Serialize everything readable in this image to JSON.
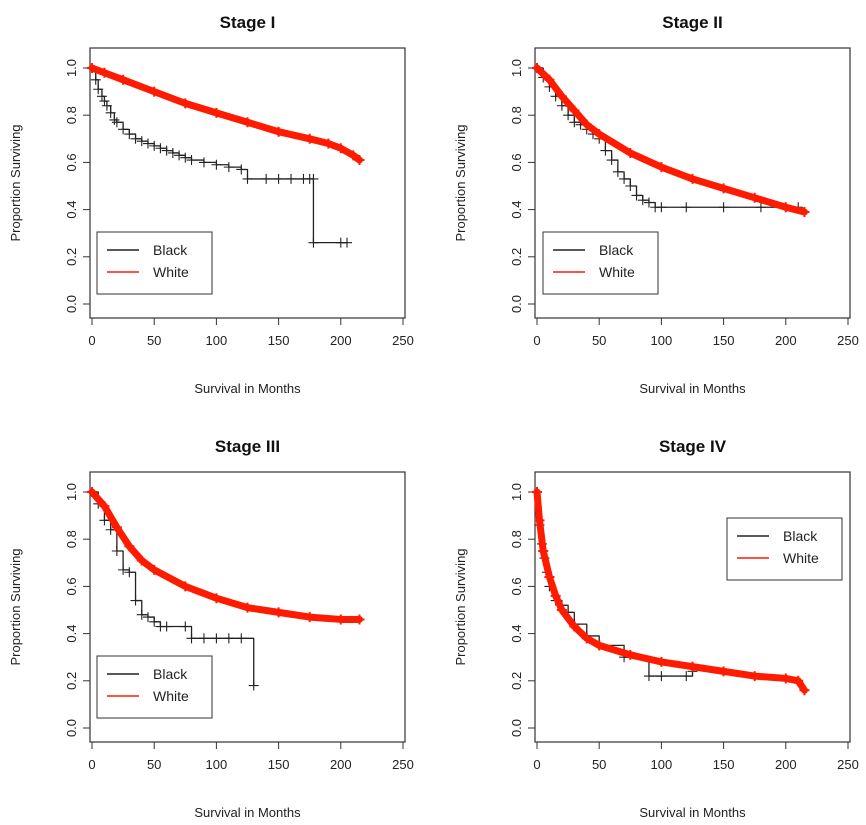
{
  "chart_data": [
    {
      "type": "line",
      "title": "Stage I",
      "xlabel": "Survival in Months",
      "ylabel": "Proportion Surviving",
      "xlim": [
        0,
        250
      ],
      "ylim": [
        0,
        1
      ],
      "xticks": [
        "0",
        "50",
        "100",
        "150",
        "200",
        "250"
      ],
      "yticks": [
        "0.0",
        "0.2",
        "0.4",
        "0.6",
        "0.8",
        "1.0"
      ],
      "legend": "bottom-left",
      "series": [
        {
          "name": "Black",
          "color": "#222222",
          "x": [
            0,
            3,
            5,
            8,
            10,
            12,
            15,
            18,
            20,
            25,
            30,
            35,
            40,
            45,
            50,
            55,
            60,
            65,
            70,
            75,
            80,
            90,
            100,
            110,
            120,
            125,
            140,
            150,
            160,
            170,
            175,
            178,
            178,
            200,
            205
          ],
          "y": [
            1.0,
            0.95,
            0.91,
            0.88,
            0.86,
            0.84,
            0.81,
            0.78,
            0.77,
            0.74,
            0.72,
            0.7,
            0.69,
            0.68,
            0.67,
            0.66,
            0.65,
            0.64,
            0.63,
            0.62,
            0.61,
            0.6,
            0.59,
            0.58,
            0.57,
            0.53,
            0.53,
            0.53,
            0.53,
            0.53,
            0.53,
            0.53,
            0.26,
            0.26,
            0.26
          ]
        },
        {
          "name": "White",
          "color": "#ff1a00",
          "x": [
            0,
            10,
            25,
            50,
            75,
            100,
            125,
            150,
            175,
            190,
            200,
            210,
            215
          ],
          "y": [
            1.0,
            0.98,
            0.95,
            0.9,
            0.85,
            0.81,
            0.77,
            0.73,
            0.7,
            0.68,
            0.66,
            0.63,
            0.61
          ]
        }
      ]
    },
    {
      "type": "line",
      "title": "Stage II",
      "xlabel": "Survival in Months",
      "ylabel": "Proportion Surviving",
      "xlim": [
        0,
        250
      ],
      "ylim": [
        0,
        1
      ],
      "xticks": [
        "0",
        "50",
        "100",
        "150",
        "200",
        "250"
      ],
      "yticks": [
        "0.0",
        "0.2",
        "0.4",
        "0.6",
        "0.8",
        "1.0"
      ],
      "legend": "bottom-left",
      "series": [
        {
          "name": "Black",
          "color": "#222222",
          "x": [
            0,
            5,
            10,
            15,
            20,
            25,
            30,
            35,
            40,
            45,
            50,
            55,
            60,
            65,
            70,
            75,
            80,
            85,
            90,
            95,
            100,
            120,
            150,
            180,
            200,
            210
          ],
          "y": [
            1.0,
            0.96,
            0.92,
            0.88,
            0.84,
            0.8,
            0.77,
            0.76,
            0.74,
            0.72,
            0.7,
            0.65,
            0.61,
            0.56,
            0.53,
            0.5,
            0.46,
            0.44,
            0.43,
            0.41,
            0.41,
            0.41,
            0.41,
            0.41,
            0.41,
            0.41
          ]
        },
        {
          "name": "White",
          "color": "#ff1a00",
          "x": [
            0,
            10,
            20,
            30,
            40,
            50,
            75,
            100,
            125,
            150,
            175,
            200,
            215
          ],
          "y": [
            1.0,
            0.95,
            0.88,
            0.82,
            0.76,
            0.72,
            0.64,
            0.58,
            0.53,
            0.49,
            0.45,
            0.41,
            0.39
          ]
        }
      ]
    },
    {
      "type": "line",
      "title": "Stage III",
      "xlabel": "Survival in Months",
      "ylabel": "Proportion Surviving",
      "xlim": [
        0,
        250
      ],
      "ylim": [
        0,
        1
      ],
      "xticks": [
        "0",
        "50",
        "100",
        "150",
        "200",
        "250"
      ],
      "yticks": [
        "0.0",
        "0.2",
        "0.4",
        "0.6",
        "0.8",
        "1.0"
      ],
      "legend": "bottom-left",
      "series": [
        {
          "name": "Black",
          "color": "#222222",
          "x": [
            0,
            5,
            10,
            15,
            20,
            25,
            30,
            35,
            40,
            45,
            50,
            55,
            60,
            75,
            80,
            90,
            100,
            110,
            120,
            130
          ],
          "y": [
            1.0,
            0.95,
            0.88,
            0.84,
            0.75,
            0.67,
            0.66,
            0.54,
            0.48,
            0.47,
            0.45,
            0.43,
            0.43,
            0.43,
            0.38,
            0.38,
            0.38,
            0.38,
            0.38,
            0.18
          ]
        },
        {
          "name": "White",
          "color": "#ff1a00",
          "x": [
            0,
            10,
            20,
            30,
            40,
            50,
            75,
            100,
            125,
            150,
            175,
            200,
            215
          ],
          "y": [
            1.0,
            0.94,
            0.85,
            0.77,
            0.71,
            0.67,
            0.6,
            0.55,
            0.51,
            0.49,
            0.47,
            0.46,
            0.46
          ]
        }
      ]
    },
    {
      "type": "line",
      "title": "Stage IV",
      "xlabel": "Survival in Months",
      "ylabel": "Proportion Surviving",
      "xlim": [
        0,
        250
      ],
      "ylim": [
        0,
        1
      ],
      "xticks": [
        "0",
        "50",
        "100",
        "150",
        "200",
        "250"
      ],
      "yticks": [
        "0.0",
        "0.2",
        "0.4",
        "0.6",
        "0.8",
        "1.0"
      ],
      "legend": "top-right",
      "series": [
        {
          "name": "Black",
          "color": "#222222",
          "x": [
            0,
            2,
            4,
            6,
            8,
            10,
            15,
            20,
            25,
            30,
            40,
            50,
            70,
            90,
            100,
            120,
            125
          ],
          "y": [
            1.0,
            0.86,
            0.78,
            0.72,
            0.66,
            0.6,
            0.54,
            0.52,
            0.49,
            0.44,
            0.39,
            0.35,
            0.3,
            0.22,
            0.22,
            0.22,
            0.24
          ]
        },
        {
          "name": "White",
          "color": "#ff1a00",
          "x": [
            0,
            2,
            5,
            10,
            15,
            20,
            30,
            40,
            50,
            75,
            100,
            125,
            150,
            175,
            200,
            210,
            215
          ],
          "y": [
            1.0,
            0.88,
            0.75,
            0.64,
            0.56,
            0.5,
            0.43,
            0.38,
            0.35,
            0.31,
            0.28,
            0.26,
            0.24,
            0.22,
            0.21,
            0.2,
            0.16
          ]
        }
      ]
    }
  ]
}
